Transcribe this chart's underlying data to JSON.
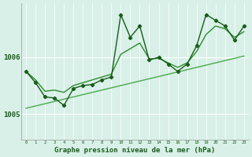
{
  "background_color": "#d8f0e8",
  "grid_color": "#ffffff",
  "line_color_dark": "#1a5c1a",
  "line_color_mid": "#2d8b2d",
  "line_color_light": "#4aaa4a",
  "title": "Graphe pression niveau de la mer (hPa)",
  "ylim": [
    1004.55,
    1006.95
  ],
  "xlim": [
    -0.5,
    23.5
  ],
  "yticks": [
    1005,
    1006
  ],
  "ytick_labels": [
    "1005",
    "1006"
  ],
  "xticks": [
    0,
    1,
    2,
    3,
    4,
    5,
    6,
    7,
    8,
    9,
    10,
    11,
    12,
    13,
    14,
    15,
    16,
    17,
    18,
    19,
    20,
    21,
    22,
    23
  ],
  "hours": [
    0,
    1,
    2,
    3,
    4,
    5,
    6,
    7,
    8,
    9,
    10,
    11,
    12,
    13,
    14,
    15,
    16,
    17,
    18,
    19,
    20,
    21,
    22,
    23
  ],
  "pressure_jagged": [
    1005.75,
    1005.55,
    1005.3,
    1005.28,
    1005.15,
    1005.45,
    1005.5,
    1005.52,
    1005.6,
    1005.65,
    1006.75,
    1006.35,
    1006.55,
    1005.95,
    1006.0,
    1005.88,
    1005.75,
    1005.88,
    1006.2,
    1006.75,
    1006.65,
    1006.55,
    1006.3,
    1006.55
  ],
  "pressure_smooth": [
    1005.75,
    1005.6,
    1005.4,
    1005.42,
    1005.38,
    1005.5,
    1005.55,
    1005.6,
    1005.65,
    1005.7,
    1006.05,
    1006.15,
    1006.25,
    1005.97,
    1005.98,
    1005.9,
    1005.82,
    1005.9,
    1006.1,
    1006.4,
    1006.55,
    1006.5,
    1006.35,
    1006.45
  ],
  "pressure_trend": [
    1005.1,
    1005.14,
    1005.18,
    1005.22,
    1005.26,
    1005.3,
    1005.34,
    1005.38,
    1005.42,
    1005.46,
    1005.5,
    1005.54,
    1005.58,
    1005.62,
    1005.66,
    1005.7,
    1005.74,
    1005.78,
    1005.82,
    1005.86,
    1005.9,
    1005.94,
    1005.98,
    1006.02
  ]
}
